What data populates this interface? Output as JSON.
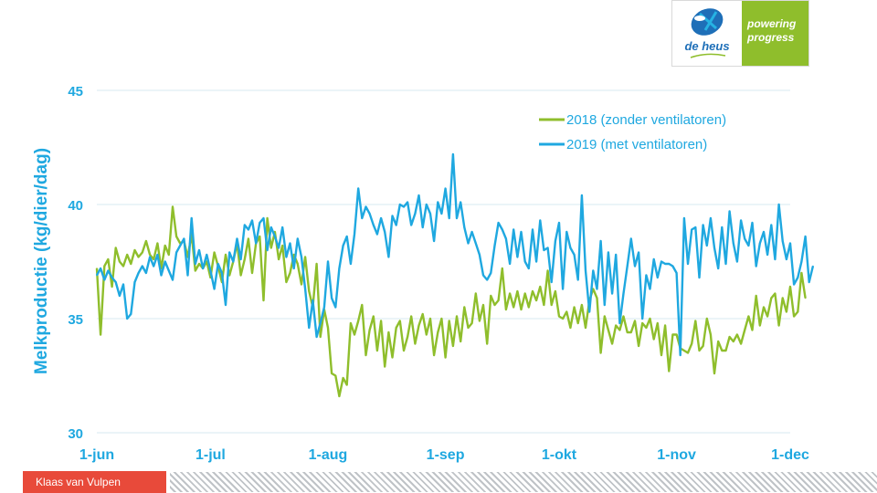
{
  "logo": {
    "brand": "de heus",
    "tagline_line1": "powering",
    "tagline_line2": "progress",
    "colors": {
      "green": "#8fbe2c",
      "blue": "#1e6fb8",
      "cyan": "#26b2e3"
    }
  },
  "footer": {
    "author": "Klaas van Vulpen",
    "author_bg": "#e84a3a"
  },
  "chart_data": {
    "type": "line",
    "ylabel": "Melkproductie (kg/dier/dag)",
    "xlabel": "",
    "ylim": [
      30,
      45
    ],
    "yticks": [
      30,
      35,
      40,
      45
    ],
    "x_days": 183,
    "xticks": [
      {
        "label": "1-jun",
        "day": 0
      },
      {
        "label": "1-jul",
        "day": 30
      },
      {
        "label": "1-aug",
        "day": 61
      },
      {
        "label": "1-sep",
        "day": 92
      },
      {
        "label": "1-okt",
        "day": 122
      },
      {
        "label": "1-nov",
        "day": 153
      },
      {
        "label": "1-dec",
        "day": 183
      }
    ],
    "grid": true,
    "legend_position": "top-right",
    "series": [
      {
        "name": "2018 (zonder ventilatoren)",
        "color": "#8fbe2c",
        "values": [
          37.2,
          34.3,
          37.3,
          37.6,
          36.4,
          38.1,
          37.5,
          37.3,
          37.8,
          37.4,
          38.0,
          37.7,
          37.9,
          38.4,
          37.8,
          37.6,
          38.3,
          37.2,
          38.2,
          37.8,
          39.9,
          38.6,
          38.3,
          38.4,
          37.7,
          38.7,
          37.1,
          37.4,
          37.2,
          37.5,
          36.8,
          37.9,
          37.3,
          36.6,
          37.8,
          36.9,
          37.5,
          38.3,
          36.9,
          37.6,
          38.5,
          37.0,
          38.3,
          38.6,
          35.8,
          39.4,
          38.1,
          38.8,
          37.6,
          38.2,
          36.6,
          37.0,
          37.8,
          37.4,
          36.5,
          37.7,
          36.2,
          35.5,
          37.4,
          34.2,
          35.4,
          34.6,
          32.6,
          32.5,
          31.6,
          32.4,
          32.1,
          34.8,
          34.3,
          34.9,
          35.6,
          33.4,
          34.5,
          35.1,
          33.6,
          34.9,
          32.9,
          34.4,
          33.3,
          34.6,
          34.9,
          33.6,
          34.2,
          35.1,
          33.9,
          34.7,
          35.2,
          34.3,
          35.0,
          33.4,
          34.4,
          35.0,
          33.3,
          34.9,
          33.8,
          35.1,
          34.0,
          35.5,
          34.6,
          34.8,
          36.1,
          34.9,
          35.6,
          33.9,
          36.0,
          35.6,
          35.8,
          37.2,
          35.4,
          36.1,
          35.5,
          36.2,
          35.4,
          36.1,
          35.5,
          36.2,
          35.8,
          36.4,
          35.6,
          37.1,
          35.6,
          36.2,
          35.1,
          35.0,
          35.3,
          34.6,
          35.5,
          34.8,
          35.6,
          34.6,
          35.8,
          36.3,
          35.9,
          33.5,
          35.1,
          34.5,
          33.9,
          34.7,
          34.5,
          35.1,
          34.4,
          34.4,
          34.9,
          33.8,
          34.8,
          34.6,
          35.0,
          34.1,
          34.8,
          33.4,
          34.7,
          32.7,
          34.3,
          34.3,
          33.7,
          33.6,
          33.5,
          33.9,
          34.9,
          33.6,
          33.8,
          35.0,
          34.3,
          32.6,
          34.0,
          33.6,
          33.6,
          34.2,
          34.0,
          34.3,
          33.9,
          34.5,
          35.1,
          34.5,
          36.0,
          34.7,
          35.5,
          35.1,
          35.9,
          36.1,
          34.7,
          35.9,
          35.3,
          36.4,
          35.1,
          35.3,
          37.0,
          35.9
        ]
      },
      {
        "name": "2019 (met ventilatoren)",
        "color": "#1fa8e0",
        "values": [
          36.9,
          37.2,
          36.7,
          37.1,
          36.8,
          36.6,
          36.0,
          36.5,
          35.0,
          35.2,
          36.6,
          37.0,
          37.3,
          37.0,
          37.7,
          37.3,
          37.8,
          36.9,
          37.5,
          37.1,
          36.7,
          37.9,
          38.2,
          38.5,
          36.9,
          39.4,
          37.4,
          38.0,
          37.2,
          37.8,
          37.1,
          36.3,
          37.4,
          37.0,
          35.6,
          37.9,
          37.5,
          38.5,
          37.6,
          39.1,
          38.9,
          39.3,
          38.3,
          39.2,
          39.4,
          38.0,
          39.0,
          38.6,
          38.1,
          39.0,
          37.7,
          38.3,
          37.2,
          38.5,
          37.7,
          36.3,
          34.6,
          35.8,
          34.2,
          34.8,
          35.5,
          37.5,
          35.9,
          35.5,
          37.2,
          38.2,
          38.6,
          37.4,
          38.7,
          40.7,
          39.4,
          39.9,
          39.6,
          39.1,
          38.7,
          39.4,
          38.8,
          37.7,
          39.5,
          39.1,
          40.0,
          39.9,
          40.1,
          39.1,
          39.6,
          40.4,
          39.0,
          40.0,
          39.6,
          38.4,
          40.1,
          39.6,
          40.7,
          39.4,
          42.2,
          39.4,
          40.1,
          39.0,
          38.3,
          38.8,
          38.3,
          37.8,
          36.9,
          36.7,
          37.0,
          38.2,
          39.2,
          38.9,
          38.5,
          37.4,
          38.9,
          37.7,
          38.8,
          37.5,
          37.2,
          38.9,
          37.5,
          39.3,
          38.0,
          38.1,
          36.6,
          38.4,
          39.2,
          36.3,
          38.8,
          38.1,
          37.8,
          36.7,
          40.4,
          37.1,
          35.3,
          37.1,
          36.3,
          38.4,
          35.6,
          37.9,
          36.1,
          37.8,
          34.8,
          36.1,
          37.3,
          38.5,
          37.3,
          37.9,
          35.0,
          36.9,
          36.3,
          37.6,
          36.8,
          37.5,
          37.4,
          37.4,
          37.3,
          37.0,
          33.4,
          39.4,
          37.4,
          38.9,
          39.0,
          36.8,
          39.1,
          38.2,
          39.4,
          38.1,
          37.2,
          39.0,
          37.4,
          39.7,
          38.3,
          37.5,
          39.3,
          38.5,
          38.2,
          39.2,
          37.3,
          38.3,
          38.8,
          37.8,
          39.1,
          37.6,
          40.0,
          38.4,
          37.6,
          38.3,
          36.5,
          36.8,
          37.5,
          38.6,
          36.6,
          37.3
        ]
      }
    ]
  }
}
